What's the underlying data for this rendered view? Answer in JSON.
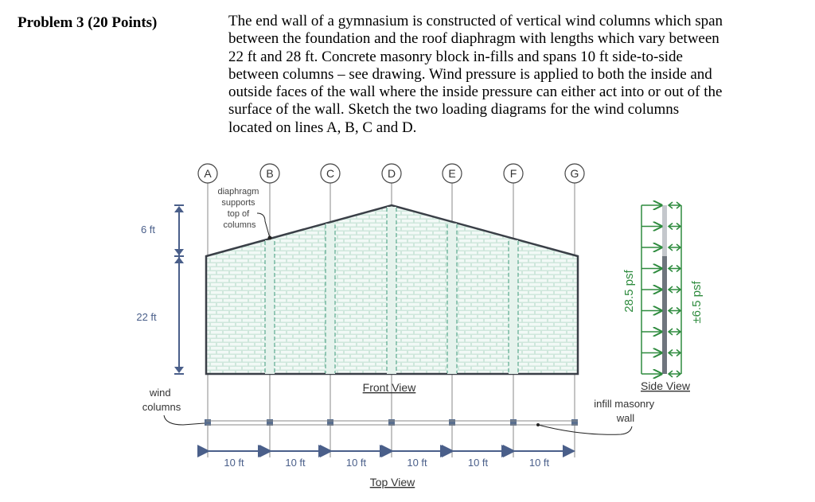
{
  "problem": {
    "title": "Problem 3 (20 Points)",
    "lines": [
      "The end wall of a gymnasium is constructed of vertical wind columns which span",
      "between the foundation and the roof diaphragm with lengths which vary between",
      "22 ft and 28 ft. Concrete masonry block in-fills and spans 10 ft side-to-side",
      "between columns – see drawing.  Wind pressure is applied to both the inside and",
      "outside faces of the wall where the inside pressure can either act into or out of the",
      "surface of the wall.  Sketch the two loading diagrams for the wind columns",
      "located on lines A, B, C and D."
    ]
  },
  "figure": {
    "column_labels": [
      "A",
      "B",
      "C",
      "D",
      "E",
      "F",
      "G"
    ],
    "diaphragm_note": [
      "diaphragm",
      "supports",
      "top of",
      "columns"
    ],
    "dim_top": "6 ft",
    "dim_bottom": "22 ft",
    "wind_columns_label": [
      "wind",
      "columns"
    ],
    "front_view": "Front View",
    "top_view": "Top View",
    "spacing_labels": [
      "10 ft",
      "10 ft",
      "10 ft",
      "10 ft",
      "10 ft",
      "10 ft"
    ],
    "side_view": "Side View",
    "infill_label": [
      "infill masonry",
      "wall"
    ],
    "outside_pressure": "28.5 psf",
    "inside_pressure": "±6.5 psf",
    "colors": {
      "dim": "#4a5f8a",
      "load": "#2e8b3e",
      "wall_fill": "#dcefe7",
      "outline": "#3a3f47"
    }
  }
}
